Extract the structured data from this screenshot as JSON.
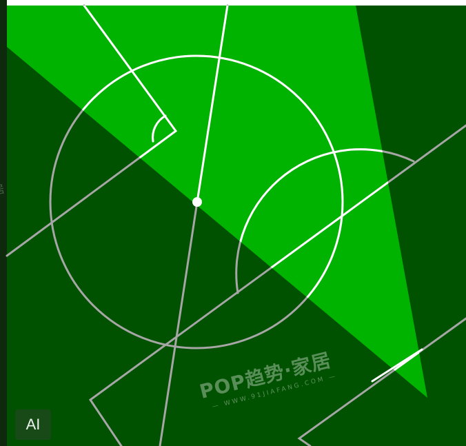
{
  "badge": {
    "label": "AI"
  },
  "watermark": {
    "brand": "POP趋势·家居",
    "url": "— WWW.91JIAFANG.COM —",
    "left_fragment": "居"
  },
  "colors": {
    "bright_green": "#00b300",
    "dark_green": "#005200",
    "white_line": "#ffffff",
    "gray_line": "#a6a6a6"
  }
}
